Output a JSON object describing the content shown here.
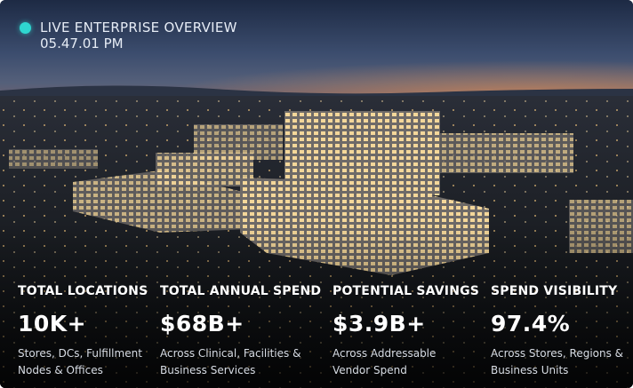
{
  "header": {
    "title": "LIVE ENTERPRISE OVERVIEW",
    "time": "05.47.01 PM"
  },
  "stats": [
    {
      "label": "TOTAL LOCATIONS",
      "value": "10K+",
      "description": "Stores, DCs, Fulfillment Nodes & Offices"
    },
    {
      "label": "TOTAL ANNUAL SPEND",
      "value": "$68B+",
      "description": "Across Clinical, Facilities & Business Services"
    },
    {
      "label": "POTENTIAL SAVINGS",
      "value": "$3.9B+",
      "description": "Across Addressable Vendor Spend"
    },
    {
      "label": "SPEND VISIBILITY",
      "value": "97.4%",
      "description": "Across Stores, Regions & Business Units"
    }
  ]
}
